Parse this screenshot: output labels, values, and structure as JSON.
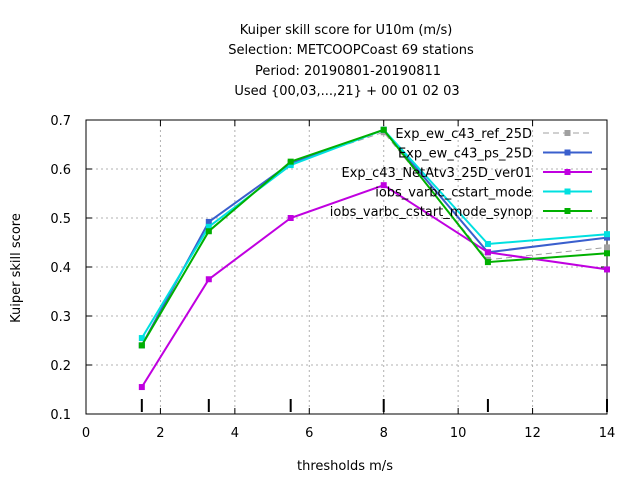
{
  "chart_data": {
    "type": "line",
    "title_lines": [
      "Kuiper skill score  for U10m (m/s)",
      "Selection: METCOOPCoast     69 stations",
      "Period: 20190801-20190811",
      "Used {00,03,...,21} + 00 01 02 03"
    ],
    "xlabel": "thresholds m/s",
    "ylabel": "Kuiper skill score",
    "xlim": [
      0,
      14
    ],
    "ylim": [
      0.1,
      0.7
    ],
    "xticks": [
      0,
      2,
      4,
      6,
      8,
      10,
      12,
      14
    ],
    "yticks": [
      0.1,
      0.2,
      0.3,
      0.4,
      0.5,
      0.6,
      0.7
    ],
    "xtick_labels": [
      "0",
      "2",
      "4",
      "6",
      "8",
      "10",
      "12",
      "14"
    ],
    "ytick_labels": [
      "0.1",
      "0.2",
      "0.3",
      "0.4",
      "0.5",
      "0.6",
      "0.7"
    ],
    "grid": true,
    "legend_position": "top-right",
    "x": [
      1.5,
      3.3,
      5.5,
      8.0,
      10.8,
      14.0
    ],
    "sample_marker_x": [
      1.5,
      3.3,
      5.5,
      8.0,
      10.8,
      14.0
    ],
    "series": [
      {
        "name": "Exp_ew_c43_ref_25D",
        "color": "#a0a0a0",
        "dashed": true,
        "values": [
          0.24,
          0.475,
          0.612,
          0.675,
          0.415,
          0.44
        ]
      },
      {
        "name": "Exp_ew_c43_ps_25D",
        "color": "#3a5fcd",
        "dashed": false,
        "values": [
          0.24,
          0.492,
          0.612,
          0.68,
          0.43,
          0.46
        ]
      },
      {
        "name": "Exp_c43_NetAtv3_25D_ver01",
        "color": "#c000e0",
        "dashed": false,
        "values": [
          0.155,
          0.375,
          0.5,
          0.567,
          0.43,
          0.395
        ]
      },
      {
        "name": "iobs_varbc_cstart_mode",
        "color": "#00e0e0",
        "dashed": false,
        "values": [
          0.255,
          0.482,
          0.608,
          0.68,
          0.447,
          0.467
        ]
      },
      {
        "name": "iobs_varbc_cstart_mode_synop",
        "color": "#00b000",
        "dashed": false,
        "values": [
          0.24,
          0.473,
          0.615,
          0.68,
          0.41,
          0.428
        ]
      }
    ]
  }
}
